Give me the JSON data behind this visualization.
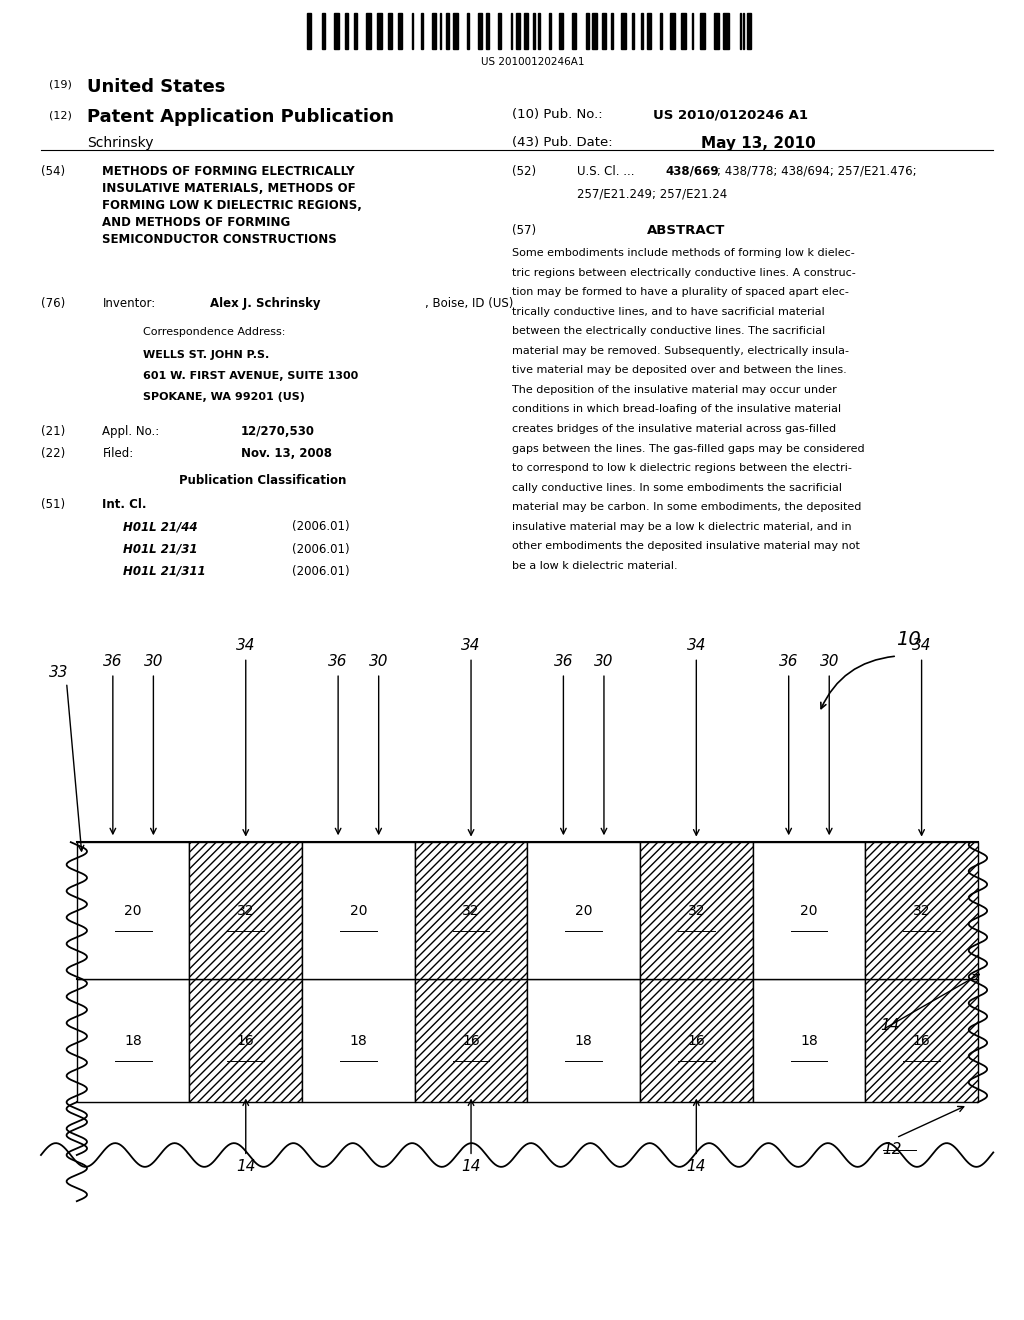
{
  "bg_color": "#ffffff",
  "text_color": "#000000",
  "barcode_text": "US 20100120246A1",
  "title_19": "(19) United States",
  "title_12": "(12) Patent Application Publication",
  "pub_no_val": "US 2010/0120246 A1",
  "pub_date_val": "May 13, 2010",
  "inventor_name": "Schrinsky",
  "section54_title": "METHODS OF FORMING ELECTRICALLY\nINSULATIVE MATERIALS, METHODS OF\nFORMING LOW K DIELECTRIC REGIONS,\nAND METHODS OF FORMING\nSEMICONDUCTOR CONSTRUCTIONS",
  "section76_val": "Alex J. Schrinsky",
  "section76_rest": ", Boise, ID (US)",
  "corr1": "Correspondence Address:",
  "corr2": "WELLS ST. JOHN P.S.",
  "corr3": "601 W. FIRST AVENUE, SUITE 1300",
  "corr4": "SPOKANE, WA 99201 (US)",
  "section21_val": "12/270,530",
  "section22_val": "Nov. 13, 2008",
  "pub_class_title": "Publication Classification",
  "section51_classes": [
    [
      "H01L 21/44",
      "(2006.01)"
    ],
    [
      "H01L 21/31",
      "(2006.01)"
    ],
    [
      "H01L 21/311",
      "(2006.01)"
    ]
  ],
  "section52_line1": "438/669; 438/778; 438/694; 257/E21.476;",
  "section52_line2": "257/E21.249; 257/E21.24",
  "section52_bold": "438/669",
  "abstract_lines": [
    "Some embodiments include methods of forming low k dielec-",
    "tric regions between electrically conductive lines. A construc-",
    "tion may be formed to have a plurality of spaced apart elec-",
    "trically conductive lines, and to have sacrificial material",
    "between the electrically conductive lines. The sacrificial",
    "material may be removed. Subsequently, electrically insula-",
    "tive material may be deposited over and between the lines.",
    "The deposition of the insulative material may occur under",
    "conditions in which bread-loafing of the insulative material",
    "creates bridges of the insulative material across gas-filled",
    "gaps between the lines. The gas-filled gaps may be considered",
    "to correspond to low k dielectric regions between the electri-",
    "cally conductive lines. In some embodiments the sacrificial",
    "material may be carbon. In some embodiments, the deposited",
    "insulative material may be a low k dielectric material, and in",
    "other embodiments the deposited insulative material may not",
    "be a low k dielectric material."
  ]
}
